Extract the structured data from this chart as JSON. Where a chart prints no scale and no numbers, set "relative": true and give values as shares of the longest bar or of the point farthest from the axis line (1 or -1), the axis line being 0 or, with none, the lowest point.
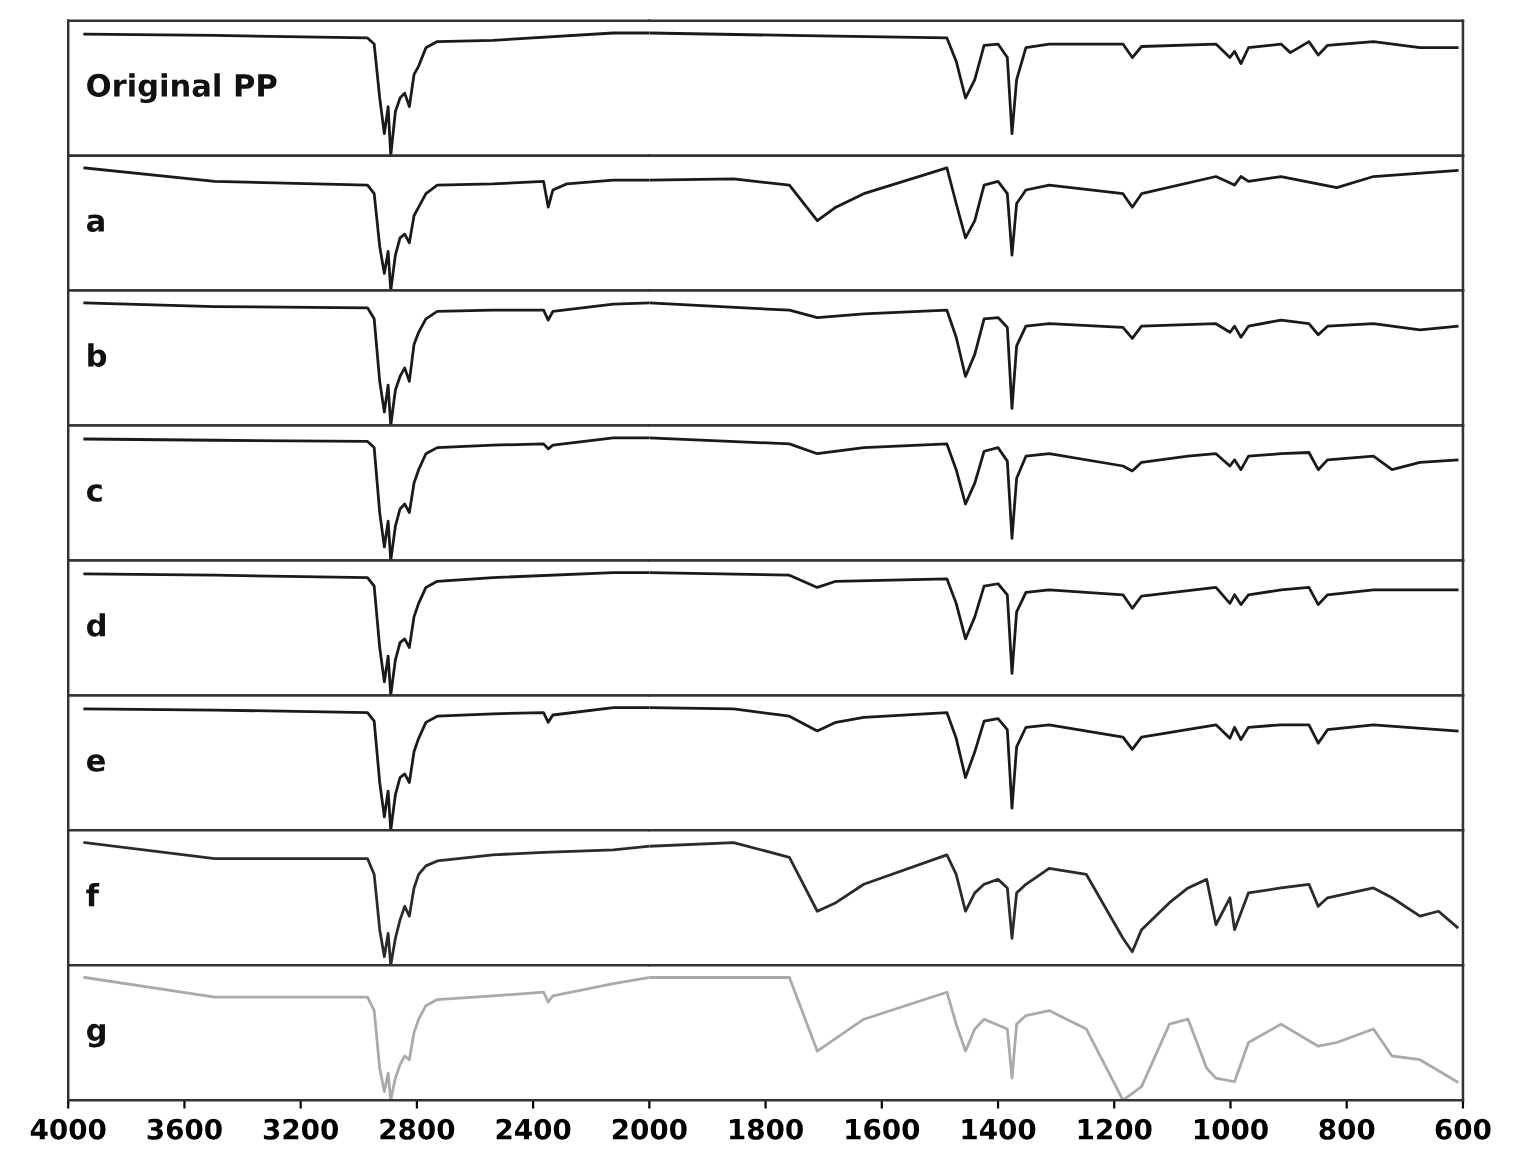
{
  "chart_data": [
    {
      "type": "line",
      "relative": true,
      "xlim": [
        4000,
        2000
      ],
      "xticks": [
        4000,
        3600,
        3200,
        2800,
        2400,
        2000
      ],
      "tick_labels": false,
      "series": [
        {
          "name": "Original PP",
          "color": "#1a1a1a",
          "x": [
            3943,
            3496,
            2970,
            2947,
            2928,
            2912,
            2899,
            2890,
            2874,
            2858,
            2842,
            2826,
            2810,
            2794,
            2769,
            2730,
            2539,
            2124,
            2000
          ],
          "values": [
            0.99,
            0.98,
            0.96,
            0.91,
            0.47,
            0.18,
            0.4,
            0,
            0.36,
            0.47,
            0.51,
            0.4,
            0.66,
            0.73,
            0.88,
            0.93,
            0.94,
            1.0,
            1.0
          ]
        }
      ]
    },
    {
      "type": "line",
      "relative": true,
      "xlim": [
        2000,
        600
      ],
      "xticks": [
        1800,
        1600,
        1400,
        1200,
        1000,
        800,
        600
      ],
      "tick_labels": false,
      "series": [
        {
          "color": "#1a1a1a",
          "x": [
            2000,
            1759,
            1488,
            1472,
            1456,
            1440,
            1424,
            1400,
            1384,
            1376,
            1368,
            1352,
            1312,
            1185,
            1169,
            1153,
            1025,
            1001,
            993,
            982,
            969,
            913,
            897,
            865,
            849,
            833,
            754,
            674,
            610
          ],
          "values": [
            1.0,
            0.98,
            0.96,
            0.77,
            0.47,
            0.62,
            0.9,
            0.91,
            0.8,
            0.18,
            0.62,
            0.88,
            0.91,
            0.91,
            0.8,
            0.89,
            0.91,
            0.8,
            0.85,
            0.75,
            0.88,
            0.91,
            0.84,
            0.93,
            0.82,
            0.9,
            0.93,
            0.88,
            0.88
          ]
        }
      ]
    },
    {
      "type": "line",
      "relative": true,
      "xlim": [
        4000,
        2000
      ],
      "xticks": [
        4000,
        3600,
        3200,
        2800,
        2400,
        2000
      ],
      "tick_labels": false,
      "series": [
        {
          "name": "a",
          "color": "#1a1a1a",
          "x": [
            3943,
            3496,
            2970,
            2947,
            2928,
            2912,
            2899,
            2890,
            2874,
            2858,
            2842,
            2826,
            2810,
            2794,
            2769,
            2730,
            2539,
            2364,
            2348,
            2332,
            2284,
            2124,
            2000
          ],
          "values": [
            1.0,
            0.89,
            0.86,
            0.79,
            0.36,
            0.14,
            0.32,
            0,
            0.29,
            0.43,
            0.46,
            0.39,
            0.61,
            0.68,
            0.79,
            0.86,
            0.87,
            0.89,
            0.68,
            0.82,
            0.87,
            0.9,
            0.9
          ]
        }
      ]
    },
    {
      "type": "line",
      "relative": true,
      "xlim": [
        2000,
        600
      ],
      "xticks": [
        1800,
        1600,
        1400,
        1200,
        1000,
        800,
        600
      ],
      "tick_labels": false,
      "series": [
        {
          "color": "#1a1a1a",
          "x": [
            2000,
            1855,
            1759,
            1711,
            1679,
            1631,
            1488,
            1472,
            1456,
            1440,
            1424,
            1400,
            1384,
            1376,
            1368,
            1352,
            1312,
            1185,
            1169,
            1153,
            1025,
            993,
            982,
            969,
            913,
            817,
            754,
            610
          ],
          "values": [
            0.9,
            0.91,
            0.86,
            0.57,
            0.68,
            0.79,
            1.0,
            0.71,
            0.43,
            0.57,
            0.86,
            0.89,
            0.79,
            0.29,
            0.71,
            0.82,
            0.86,
            0.79,
            0.68,
            0.79,
            0.93,
            0.86,
            0.93,
            0.89,
            0.93,
            0.84,
            0.93,
            0.98
          ]
        }
      ]
    },
    {
      "type": "line",
      "relative": true,
      "xlim": [
        4000,
        2000
      ],
      "xticks": [
        4000,
        3600,
        3200,
        2800,
        2400,
        2000
      ],
      "tick_labels": false,
      "series": [
        {
          "name": "b",
          "color": "#1a1a1a",
          "x": [
            3943,
            3496,
            2970,
            2947,
            2928,
            2912,
            2899,
            2890,
            2874,
            2858,
            2842,
            2826,
            2810,
            2794,
            2769,
            2730,
            2539,
            2364,
            2348,
            2332,
            2124,
            2000
          ],
          "values": [
            1.0,
            0.97,
            0.96,
            0.87,
            0.36,
            0.11,
            0.33,
            0,
            0.29,
            0.4,
            0.47,
            0.36,
            0.66,
            0.76,
            0.87,
            0.93,
            0.94,
            0.94,
            0.86,
            0.93,
            0.99,
            1.0
          ]
        }
      ]
    },
    {
      "type": "line",
      "relative": true,
      "xlim": [
        2000,
        600
      ],
      "xticks": [
        1800,
        1600,
        1400,
        1200,
        1000,
        800,
        600
      ],
      "tick_labels": false,
      "series": [
        {
          "color": "#1a1a1a",
          "x": [
            2000,
            1759,
            1711,
            1631,
            1488,
            1472,
            1456,
            1440,
            1424,
            1400,
            1384,
            1376,
            1368,
            1352,
            1312,
            1185,
            1169,
            1153,
            1025,
            1001,
            993,
            982,
            969,
            913,
            865,
            849,
            833,
            754,
            674,
            610
          ],
          "values": [
            1.0,
            0.94,
            0.88,
            0.91,
            0.94,
            0.72,
            0.4,
            0.58,
            0.87,
            0.88,
            0.8,
            0.14,
            0.65,
            0.81,
            0.83,
            0.8,
            0.71,
            0.81,
            0.83,
            0.76,
            0.81,
            0.72,
            0.81,
            0.86,
            0.83,
            0.74,
            0.81,
            0.83,
            0.78,
            0.81
          ]
        }
      ]
    },
    {
      "type": "line",
      "relative": true,
      "xlim": [
        4000,
        2000
      ],
      "xticks": [
        4000,
        3600,
        3200,
        2800,
        2400,
        2000
      ],
      "tick_labels": false,
      "series": [
        {
          "name": "c",
          "color": "#1a1a1a",
          "x": [
            3943,
            3496,
            2970,
            2947,
            2928,
            2912,
            2899,
            2890,
            2874,
            2858,
            2842,
            2826,
            2810,
            2794,
            2769,
            2730,
            2539,
            2364,
            2348,
            2332,
            2124,
            2000
          ],
          "values": [
            0.99,
            0.98,
            0.97,
            0.92,
            0.39,
            0.11,
            0.32,
            0,
            0.28,
            0.42,
            0.46,
            0.39,
            0.63,
            0.74,
            0.87,
            0.92,
            0.94,
            0.95,
            0.91,
            0.94,
            1.0,
            1.0
          ]
        }
      ]
    },
    {
      "type": "line",
      "relative": true,
      "xlim": [
        2000,
        600
      ],
      "xticks": [
        1800,
        1600,
        1400,
        1200,
        1000,
        800,
        600
      ],
      "tick_labels": false,
      "series": [
        {
          "color": "#1a1a1a",
          "x": [
            2000,
            1759,
            1711,
            1631,
            1488,
            1472,
            1456,
            1440,
            1424,
            1400,
            1384,
            1376,
            1368,
            1352,
            1312,
            1185,
            1169,
            1153,
            1073,
            1025,
            1001,
            993,
            982,
            969,
            913,
            865,
            849,
            833,
            754,
            722,
            674,
            610
          ],
          "values": [
            1.0,
            0.95,
            0.87,
            0.92,
            0.95,
            0.74,
            0.46,
            0.63,
            0.89,
            0.92,
            0.81,
            0.18,
            0.67,
            0.85,
            0.87,
            0.77,
            0.73,
            0.8,
            0.85,
            0.87,
            0.77,
            0.82,
            0.74,
            0.85,
            0.87,
            0.88,
            0.74,
            0.82,
            0.85,
            0.74,
            0.8,
            0.82
          ]
        }
      ]
    },
    {
      "type": "line",
      "relative": true,
      "xlim": [
        4000,
        2000
      ],
      "xticks": [
        4000,
        3600,
        3200,
        2800,
        2400,
        2000
      ],
      "tick_labels": false,
      "series": [
        {
          "name": "d",
          "color": "#1a1a1a",
          "x": [
            3943,
            3496,
            2970,
            2947,
            2928,
            2912,
            2899,
            2890,
            2874,
            2858,
            2842,
            2826,
            2810,
            2794,
            2769,
            2730,
            2539,
            2124,
            2000
          ],
          "values": [
            0.99,
            0.98,
            0.96,
            0.89,
            0.39,
            0.11,
            0.32,
            0,
            0.29,
            0.43,
            0.46,
            0.39,
            0.64,
            0.75,
            0.88,
            0.93,
            0.96,
            1.0,
            1.0
          ]
        }
      ]
    },
    {
      "type": "line",
      "relative": true,
      "xlim": [
        2000,
        600
      ],
      "xticks": [
        1800,
        1600,
        1400,
        1200,
        1000,
        800,
        600
      ],
      "tick_labels": false,
      "series": [
        {
          "color": "#1a1a1a",
          "x": [
            2000,
            1759,
            1711,
            1679,
            1488,
            1472,
            1456,
            1440,
            1424,
            1400,
            1384,
            1376,
            1368,
            1352,
            1312,
            1185,
            1169,
            1153,
            1025,
            1001,
            993,
            982,
            969,
            913,
            865,
            849,
            833,
            754,
            610
          ],
          "values": [
            1.0,
            0.98,
            0.88,
            0.93,
            0.95,
            0.75,
            0.46,
            0.64,
            0.89,
            0.91,
            0.82,
            0.18,
            0.68,
            0.84,
            0.86,
            0.82,
            0.71,
            0.81,
            0.88,
            0.75,
            0.82,
            0.74,
            0.82,
            0.86,
            0.88,
            0.74,
            0.82,
            0.86,
            0.86
          ]
        }
      ]
    },
    {
      "type": "line",
      "relative": true,
      "xlim": [
        4000,
        2000
      ],
      "xticks": [
        4000,
        3600,
        3200,
        2800,
        2400,
        2000
      ],
      "tick_labels": false,
      "series": [
        {
          "name": "e",
          "color": "#1a1a1a",
          "x": [
            3943,
            3496,
            2970,
            2947,
            2928,
            2912,
            2899,
            2890,
            2874,
            2858,
            2842,
            2826,
            2810,
            2794,
            2769,
            2730,
            2539,
            2364,
            2348,
            2332,
            2124,
            2000
          ],
          "values": [
            0.99,
            0.98,
            0.96,
            0.89,
            0.39,
            0.11,
            0.32,
            0,
            0.29,
            0.43,
            0.46,
            0.39,
            0.64,
            0.75,
            0.88,
            0.93,
            0.95,
            0.96,
            0.88,
            0.94,
            1.0,
            1.0
          ]
        }
      ]
    },
    {
      "type": "line",
      "relative": true,
      "xlim": [
        2000,
        600
      ],
      "xticks": [
        1800,
        1600,
        1400,
        1200,
        1000,
        800,
        600
      ],
      "tick_labels": false,
      "series": [
        {
          "color": "#1a1a1a",
          "x": [
            2000,
            1855,
            1759,
            1711,
            1679,
            1631,
            1488,
            1472,
            1456,
            1440,
            1424,
            1400,
            1384,
            1376,
            1368,
            1352,
            1312,
            1185,
            1169,
            1153,
            1025,
            1001,
            993,
            982,
            969,
            913,
            865,
            849,
            833,
            754,
            610
          ],
          "values": [
            1.0,
            0.99,
            0.93,
            0.81,
            0.88,
            0.92,
            0.96,
            0.75,
            0.43,
            0.64,
            0.89,
            0.91,
            0.82,
            0.18,
            0.68,
            0.84,
            0.86,
            0.76,
            0.66,
            0.76,
            0.86,
            0.75,
            0.84,
            0.74,
            0.84,
            0.86,
            0.86,
            0.71,
            0.82,
            0.86,
            0.81
          ]
        }
      ]
    },
    {
      "type": "line",
      "relative": true,
      "xlim": [
        4000,
        2000
      ],
      "xticks": [
        4000,
        3600,
        3200,
        2800,
        2400,
        2000
      ],
      "tick_labels": false,
      "series": [
        {
          "name": "f",
          "color": "#2b2b2b",
          "x": [
            3943,
            3496,
            2970,
            2947,
            2928,
            2912,
            2899,
            2890,
            2874,
            2858,
            2842,
            2826,
            2810,
            2794,
            2769,
            2730,
            2539,
            2364,
            2124,
            2000
          ],
          "values": [
            1.0,
            0.87,
            0.87,
            0.74,
            0.29,
            0.07,
            0.26,
            0,
            0.22,
            0.37,
            0.48,
            0.4,
            0.63,
            0.74,
            0.81,
            0.85,
            0.9,
            0.92,
            0.94,
            0.97
          ]
        }
      ]
    },
    {
      "type": "line",
      "relative": true,
      "xlim": [
        2000,
        600
      ],
      "xticks": [
        1800,
        1600,
        1400,
        1200,
        1000,
        800,
        600
      ],
      "tick_labels": false,
      "series": [
        {
          "color": "#2b2b2b",
          "x": [
            2000,
            1855,
            1759,
            1711,
            1679,
            1631,
            1488,
            1472,
            1456,
            1440,
            1424,
            1400,
            1384,
            1376,
            1368,
            1352,
            1312,
            1248,
            1185,
            1169,
            1153,
            1105,
            1073,
            1041,
            1025,
            1001,
            993,
            969,
            913,
            865,
            849,
            833,
            754,
            722,
            674,
            642,
            610
          ],
          "values": [
            0.97,
            1.0,
            0.88,
            0.44,
            0.51,
            0.66,
            0.9,
            0.74,
            0.44,
            0.59,
            0.66,
            0.7,
            0.63,
            0.22,
            0.59,
            0.66,
            0.79,
            0.74,
            0.22,
            0.11,
            0.29,
            0.51,
            0.63,
            0.7,
            0.33,
            0.55,
            0.29,
            0.59,
            0.63,
            0.66,
            0.48,
            0.55,
            0.63,
            0.55,
            0.4,
            0.44,
            0.31
          ]
        }
      ]
    },
    {
      "type": "line",
      "relative": true,
      "xlim": [
        4000,
        2000
      ],
      "xticks": [
        4000,
        3600,
        3200,
        2800,
        2400,
        2000
      ],
      "tick_labels": "x",
      "series": [
        {
          "name": "g",
          "color": "#aaaaaa",
          "x": [
            3943,
            3496,
            2970,
            2947,
            2928,
            2912,
            2899,
            2890,
            2874,
            2858,
            2842,
            2826,
            2810,
            2794,
            2769,
            2730,
            2539,
            2364,
            2348,
            2332,
            2124,
            2000
          ],
          "values": [
            1.0,
            0.84,
            0.84,
            0.73,
            0.26,
            0.07,
            0.22,
            0,
            0.18,
            0.29,
            0.36,
            0.33,
            0.55,
            0.66,
            0.77,
            0.82,
            0.85,
            0.88,
            0.8,
            0.85,
            0.95,
            1.0
          ]
        }
      ]
    },
    {
      "type": "line",
      "relative": true,
      "xlim": [
        2000,
        600
      ],
      "xticks": [
        1800,
        1600,
        1400,
        1200,
        1000,
        800,
        600
      ],
      "tick_labels": "x",
      "series": [
        {
          "color": "#aaaaaa",
          "x": [
            2000,
            1759,
            1711,
            1631,
            1488,
            1472,
            1456,
            1440,
            1424,
            1384,
            1376,
            1368,
            1352,
            1312,
            1248,
            1185,
            1153,
            1105,
            1073,
            1041,
            1025,
            993,
            969,
            913,
            849,
            817,
            754,
            722,
            674,
            610
          ],
          "values": [
            1.0,
            1.0,
            0.4,
            0.66,
            0.88,
            0.62,
            0.4,
            0.58,
            0.66,
            0.58,
            0.18,
            0.62,
            0.69,
            0.73,
            0.58,
            0,
            0.11,
            0.62,
            0.66,
            0.26,
            0.18,
            0.15,
            0.47,
            0.62,
            0.44,
            0.47,
            0.58,
            0.36,
            0.33,
            0.15
          ]
        }
      ]
    }
  ]
}
